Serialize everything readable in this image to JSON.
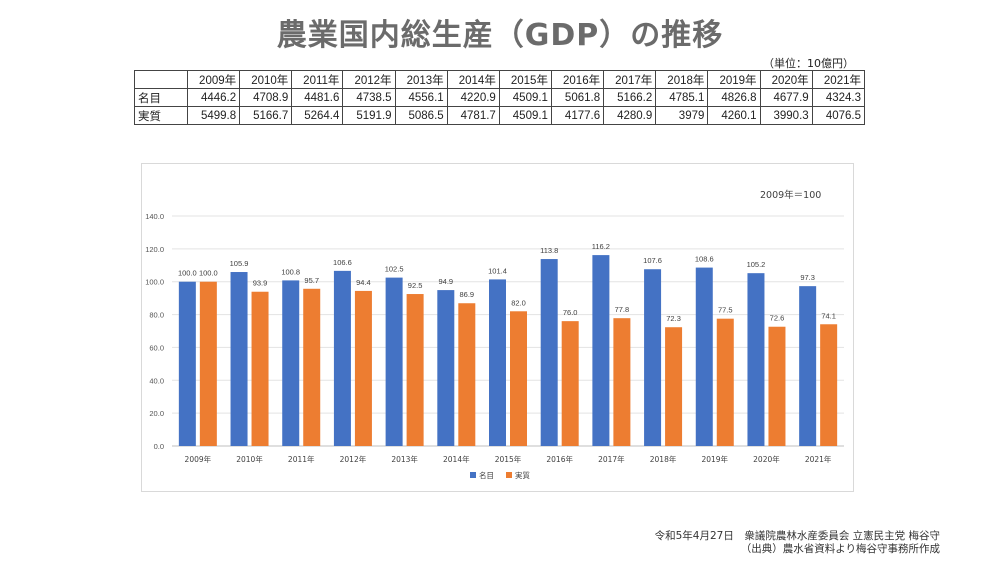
{
  "title": "農業国内総生産（GDP）の推移",
  "unit_note": "（単位：10億円）",
  "table": {
    "years": [
      "2009年",
      "2010年",
      "2011年",
      "2012年",
      "2013年",
      "2014年",
      "2015年",
      "2016年",
      "2017年",
      "2018年",
      "2019年",
      "2020年",
      "2021年"
    ],
    "rows": [
      {
        "label": "名目",
        "values": [
          "4446.2",
          "4708.9",
          "4481.6",
          "4738.5",
          "4556.1",
          "4220.9",
          "4509.1",
          "5061.8",
          "5166.2",
          "4785.1",
          "4826.8",
          "4677.9",
          "4324.3"
        ]
      },
      {
        "label": "実質",
        "values": [
          "5499.8",
          "5166.7",
          "5264.4",
          "5191.9",
          "5086.5",
          "4781.7",
          "4509.1",
          "4177.6",
          "4280.9",
          "3979",
          "4260.1",
          "3990.3",
          "4076.5"
        ]
      }
    ]
  },
  "chart_data": {
    "type": "bar",
    "annotation": "2009年＝100",
    "categories": [
      "2009年",
      "2010年",
      "2011年",
      "2012年",
      "2013年",
      "2014年",
      "2015年",
      "2016年",
      "2017年",
      "2018年",
      "2019年",
      "2020年",
      "2021年"
    ],
    "series": [
      {
        "name": "名目",
        "color": "#4472c4",
        "values": [
          100.0,
          105.9,
          100.8,
          106.6,
          102.5,
          94.9,
          101.4,
          113.8,
          116.2,
          107.6,
          108.6,
          105.2,
          97.3
        ]
      },
      {
        "name": "実質",
        "color": "#ed7d31",
        "values": [
          100.0,
          93.9,
          95.7,
          94.4,
          92.5,
          86.9,
          82.0,
          76.0,
          77.8,
          72.3,
          77.5,
          72.6,
          74.1
        ]
      }
    ],
    "ylim": [
      0,
      140
    ],
    "yticks": [
      "0.0",
      "20.0",
      "40.0",
      "60.0",
      "80.0",
      "100.0",
      "120.0",
      "140.0"
    ],
    "grid": true,
    "legend_position": "bottom"
  },
  "footer": {
    "line1": "令和5年4月27日　衆議院農林水産委員会 立憲民主党 梅谷守",
    "line2": "（出典）農水省資料より梅谷守事務所作成"
  }
}
